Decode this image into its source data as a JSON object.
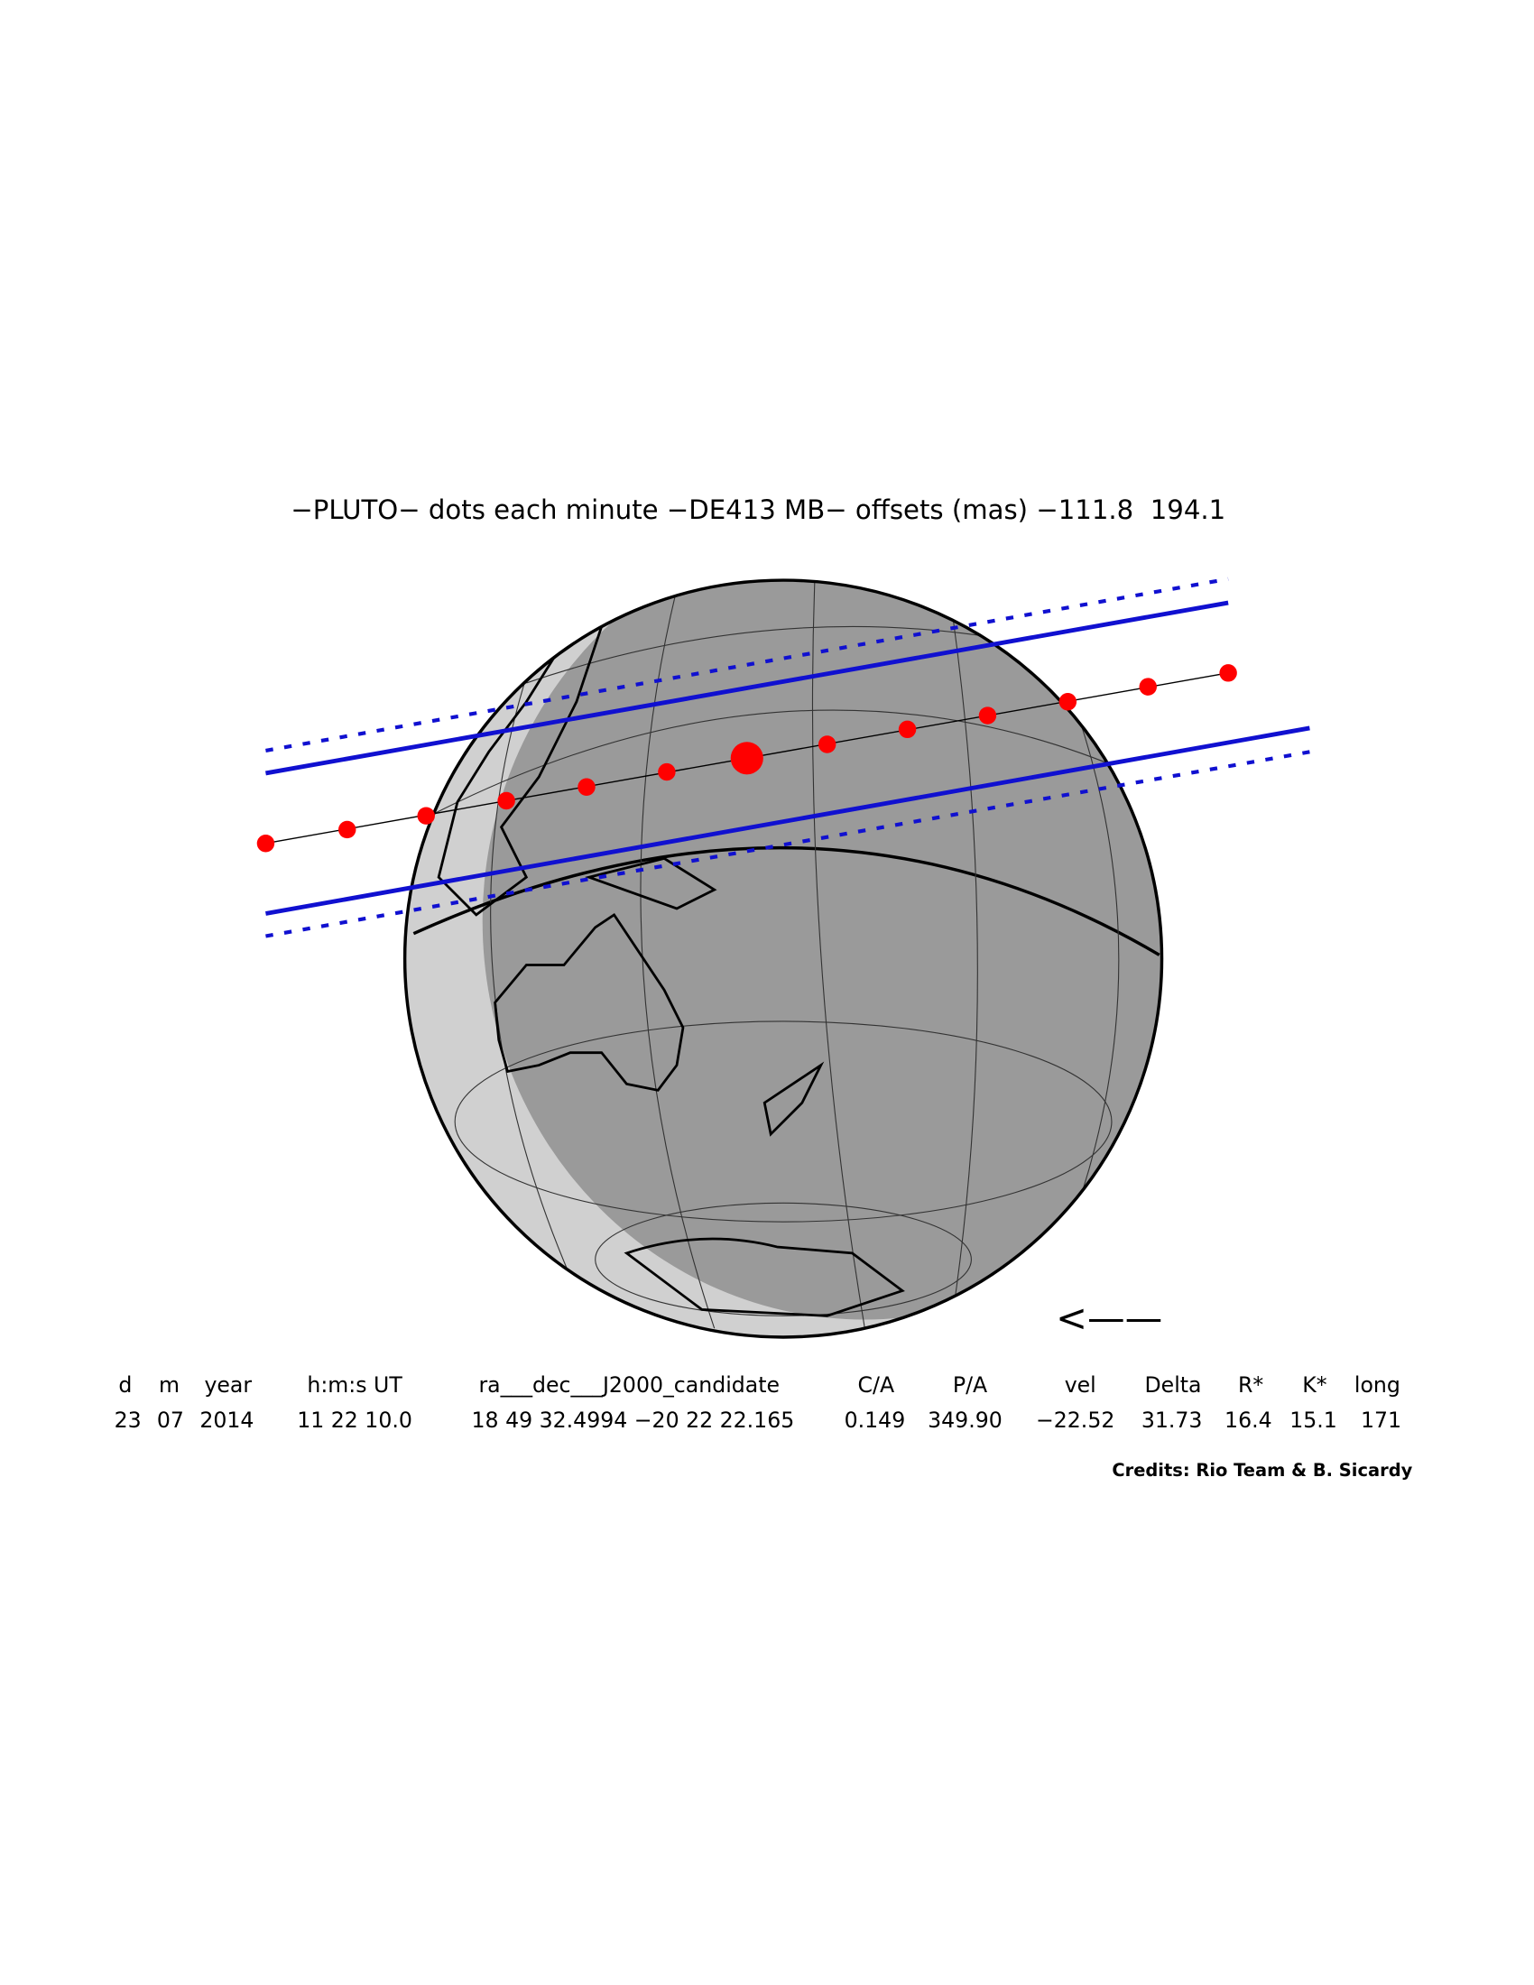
{
  "title": "−PLUTO− dots each minute −DE413 MB− offsets (mas) −111.8  194.1",
  "table": {
    "headers": [
      "d",
      "m",
      "year",
      "h:m:s UT",
      "ra___dec___J2000_candidate",
      "C/A",
      "P/A",
      "vel",
      "Delta",
      "R*",
      "K*",
      "long"
    ],
    "rows": [
      [
        "23",
        "07",
        "2014",
        "11 22 10.0",
        "18 49 32.4994 −20 22 22.165",
        "0.149",
        "349.90",
        "−22.52",
        "31.73",
        "16.4",
        "15.1",
        "171"
      ]
    ]
  },
  "credits": "Credits: Rio Team & B. Sicardy",
  "direction_arrow": "<——"
}
